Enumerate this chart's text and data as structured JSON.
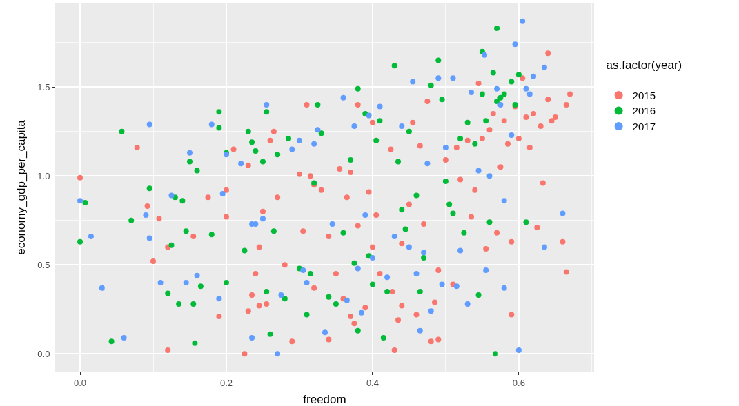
{
  "chart_data": {
    "type": "scatter",
    "xlabel": "freedom",
    "ylabel": "economy_gdp_per_capita",
    "legend_title": "as.factor(year)",
    "legend": "right",
    "grid": true,
    "marker": "circle",
    "xlim": [
      -0.034,
      0.703
    ],
    "ylim": [
      -0.1,
      1.97
    ],
    "xticks": [
      {
        "value": 0,
        "label": "0.0"
      },
      {
        "value": 0.2,
        "label": "0.2"
      },
      {
        "value": 0.4,
        "label": "0.4"
      },
      {
        "value": 0.6,
        "label": "0.6"
      }
    ],
    "yticks": [
      {
        "value": 0,
        "label": "0.0"
      },
      {
        "value": 0.5,
        "label": "0.5"
      },
      {
        "value": 1,
        "label": "1.0"
      },
      {
        "value": 1.5,
        "label": "1.5"
      }
    ],
    "series": [
      {
        "name": "2015",
        "color": "#f8766d",
        "x": [
          0.0,
          0.078,
          0.092,
          0.1,
          0.108,
          0.12,
          0.12,
          0.155,
          0.175,
          0.19,
          0.2,
          0.2,
          0.21,
          0.225,
          0.23,
          0.23,
          0.235,
          0.24,
          0.245,
          0.245,
          0.25,
          0.255,
          0.26,
          0.265,
          0.27,
          0.28,
          0.29,
          0.3,
          0.305,
          0.31,
          0.315,
          0.32,
          0.32,
          0.33,
          0.34,
          0.34,
          0.35,
          0.355,
          0.36,
          0.365,
          0.37,
          0.37,
          0.375,
          0.38,
          0.38,
          0.39,
          0.395,
          0.4,
          0.4,
          0.405,
          0.41,
          0.427,
          0.425,
          0.43,
          0.435,
          0.44,
          0.44,
          0.45,
          0.455,
          0.46,
          0.465,
          0.47,
          0.475,
          0.48,
          0.485,
          0.49,
          0.49,
          0.5,
          0.51,
          0.515,
          0.52,
          0.53,
          0.535,
          0.54,
          0.545,
          0.55,
          0.555,
          0.56,
          0.565,
          0.57,
          0.575,
          0.58,
          0.585,
          0.59,
          0.59,
          0.595,
          0.6,
          0.605,
          0.61,
          0.615,
          0.62,
          0.625,
          0.63,
          0.633,
          0.64,
          0.64,
          0.645,
          0.65,
          0.66,
          0.665,
          0.665,
          0.67
        ],
        "values": [
          0.99,
          1.16,
          0.83,
          0.52,
          0.76,
          0.02,
          0.6,
          0.66,
          0.88,
          0.21,
          0.77,
          0.92,
          1.15,
          0.0,
          0.24,
          1.06,
          0.33,
          0.45,
          0.27,
          0.6,
          0.8,
          0.28,
          1.2,
          1.25,
          0.88,
          0.5,
          0.07,
          1.01,
          0.69,
          1.4,
          1.0,
          0.37,
          0.95,
          0.92,
          0.08,
          0.66,
          0.45,
          1.04,
          0.31,
          0.88,
          0.21,
          1.02,
          0.17,
          1.4,
          0.72,
          0.26,
          0.91,
          1.3,
          0.6,
          0.78,
          0.45,
          0.35,
          1.15,
          0.02,
          0.19,
          0.62,
          0.27,
          0.84,
          1.3,
          0.22,
          1.17,
          0.73,
          1.42,
          0.07,
          0.29,
          0.47,
          0.08,
          1.09,
          0.39,
          1.16,
          0.98,
          1.2,
          0.77,
          0.92,
          1.52,
          1.21,
          0.59,
          1.26,
          1.35,
          0.68,
          1.05,
          1.31,
          1.18,
          0.22,
          0.63,
          1.39,
          1.21,
          1.55,
          1.33,
          1.16,
          1.35,
          0.71,
          1.28,
          0.96,
          1.43,
          1.69,
          1.31,
          1.33,
          0.63,
          0.46,
          1.4,
          1.46
        ]
      },
      {
        "name": "2016",
        "color": "#00ba38",
        "x": [
          0.0,
          0.007,
          0.043,
          0.057,
          0.07,
          0.095,
          0.12,
          0.125,
          0.13,
          0.135,
          0.14,
          0.145,
          0.15,
          0.155,
          0.157,
          0.16,
          0.165,
          0.18,
          0.19,
          0.19,
          0.2,
          0.2,
          0.225,
          0.23,
          0.235,
          0.24,
          0.25,
          0.255,
          0.255,
          0.26,
          0.265,
          0.27,
          0.28,
          0.285,
          0.3,
          0.31,
          0.315,
          0.32,
          0.325,
          0.33,
          0.34,
          0.35,
          0.36,
          0.37,
          0.375,
          0.38,
          0.38,
          0.39,
          0.395,
          0.4,
          0.405,
          0.41,
          0.415,
          0.42,
          0.43,
          0.435,
          0.44,
          0.445,
          0.45,
          0.46,
          0.465,
          0.47,
          0.48,
          0.49,
          0.495,
          0.5,
          0.505,
          0.51,
          0.52,
          0.525,
          0.53,
          0.54,
          0.545,
          0.55,
          0.555,
          0.56,
          0.565,
          0.568,
          0.57,
          0.575,
          0.58,
          0.59,
          0.595,
          0.61,
          0.57,
          0.6,
          0.55
        ],
        "values": [
          0.63,
          0.85,
          0.07,
          1.25,
          0.75,
          0.93,
          0.34,
          0.61,
          0.88,
          0.28,
          0.86,
          0.69,
          1.08,
          0.28,
          0.06,
          1.03,
          0.38,
          0.67,
          1.36,
          1.27,
          0.4,
          1.13,
          0.58,
          1.25,
          1.19,
          1.14,
          1.08,
          1.36,
          0.35,
          0.11,
          0.69,
          1.12,
          0.31,
          1.21,
          0.48,
          0.22,
          0.45,
          0.96,
          1.4,
          1.24,
          0.32,
          0.28,
          0.68,
          1.09,
          0.51,
          1.49,
          0.13,
          1.35,
          0.55,
          0.39,
          1.2,
          1.31,
          0.09,
          0.35,
          1.62,
          1.08,
          0.81,
          0.7,
          1.25,
          0.89,
          0.35,
          0.54,
          1.51,
          1.65,
          1.43,
          0.97,
          0.84,
          0.79,
          1.21,
          0.68,
          1.3,
          1.18,
          0.33,
          1.46,
          1.31,
          0.74,
          1.58,
          0.0,
          1.42,
          1.44,
          1.46,
          1.53,
          1.4,
          0.74,
          1.83,
          1.57,
          1.7
        ]
      },
      {
        "name": "2017",
        "color": "#619cff",
        "x": [
          0.0,
          0.015,
          0.03,
          0.06,
          0.09,
          0.095,
          0.095,
          0.11,
          0.125,
          0.145,
          0.15,
          0.16,
          0.18,
          0.19,
          0.195,
          0.2,
          0.22,
          0.235,
          0.235,
          0.24,
          0.25,
          0.255,
          0.27,
          0.275,
          0.29,
          0.3,
          0.305,
          0.31,
          0.32,
          0.325,
          0.335,
          0.345,
          0.36,
          0.365,
          0.375,
          0.38,
          0.385,
          0.39,
          0.395,
          0.4,
          0.41,
          0.42,
          0.43,
          0.44,
          0.45,
          0.455,
          0.46,
          0.465,
          0.47,
          0.475,
          0.48,
          0.49,
          0.495,
          0.5,
          0.51,
          0.515,
          0.52,
          0.53,
          0.535,
          0.545,
          0.553,
          0.555,
          0.56,
          0.57,
          0.575,
          0.58,
          0.58,
          0.59,
          0.595,
          0.6,
          0.605,
          0.61,
          0.615,
          0.62,
          0.635,
          0.635,
          0.66
        ],
        "values": [
          0.86,
          0.66,
          0.37,
          0.09,
          0.78,
          1.29,
          0.65,
          0.4,
          0.89,
          0.4,
          1.13,
          0.44,
          1.29,
          0.31,
          0.9,
          1.12,
          1.07,
          0.73,
          0.09,
          0.73,
          0.76,
          1.4,
          0.0,
          0.33,
          1.15,
          1.2,
          0.47,
          0.4,
          1.18,
          1.26,
          0.12,
          0.73,
          1.44,
          0.3,
          1.28,
          0.48,
          0.23,
          0.78,
          1.34,
          0.54,
          1.39,
          0.43,
          0.66,
          1.28,
          0.6,
          1.53,
          0.45,
          0.13,
          0.57,
          1.07,
          0.24,
          1.55,
          0.39,
          1.16,
          1.55,
          0.38,
          0.58,
          0.28,
          1.47,
          1.03,
          1.68,
          0.47,
          1.0,
          1.49,
          1.4,
          0.86,
          0.37,
          1.23,
          1.74,
          0.02,
          1.87,
          1.49,
          1.46,
          1.56,
          1.61,
          0.6,
          0.79
        ]
      }
    ]
  }
}
